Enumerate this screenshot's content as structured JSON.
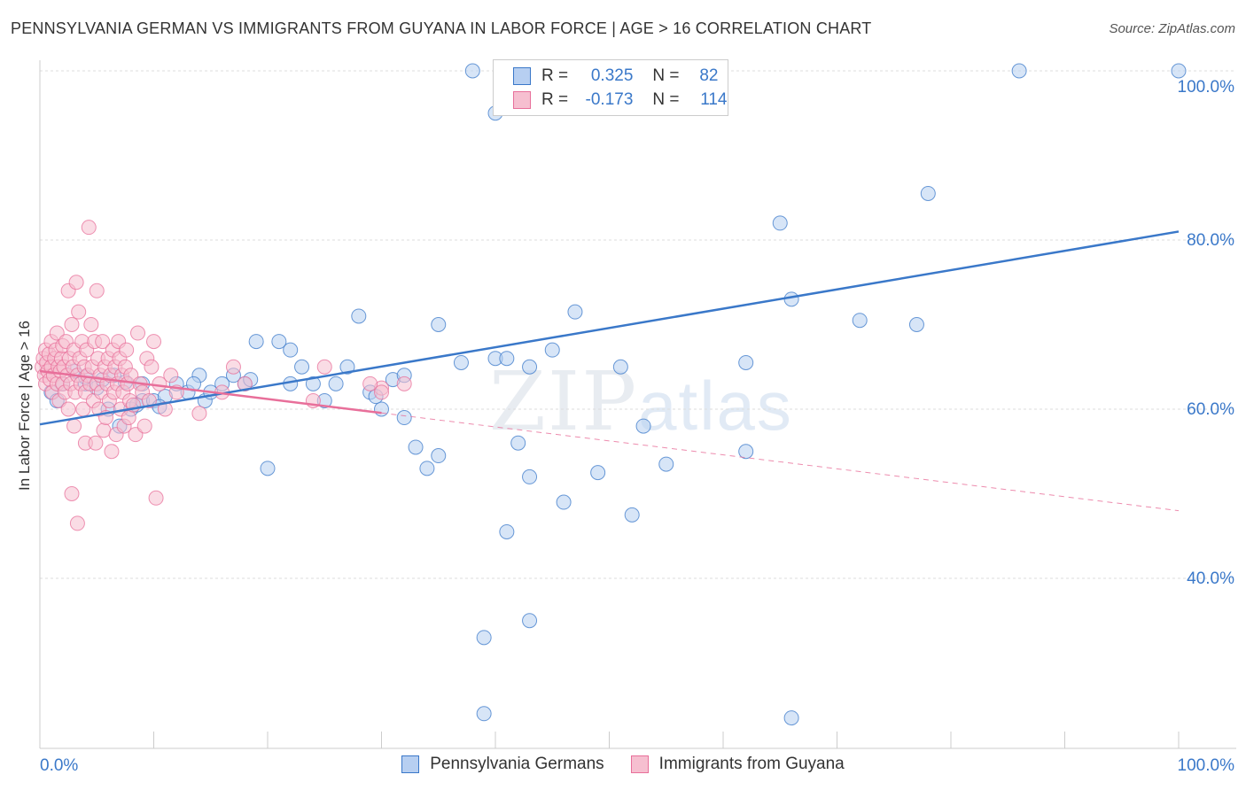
{
  "title": "PENNSYLVANIA GERMAN VS IMMIGRANTS FROM GUYANA IN LABOR FORCE | AGE > 16 CORRELATION CHART",
  "source": "Source: ZipAtlas.com",
  "watermark": {
    "zip": "ZIP",
    "atlas": "atlas"
  },
  "legend": {
    "r_label": "R =",
    "n_label": "N =",
    "series1": {
      "r": "0.325",
      "n": "82"
    },
    "series2": {
      "r": "-0.173",
      "n": "114"
    }
  },
  "colors": {
    "blue": "#3a78c9",
    "blue_fill": "#b7cff1",
    "pink": "#e86f9a",
    "pink_fill": "#f6bfd0"
  },
  "chart_data": {
    "type": "scatter",
    "xlabel": "",
    "ylabel": "In Labor Force | Age > 16",
    "xlim": [
      0,
      100
    ],
    "ylim": [
      20,
      103
    ],
    "x_tick_labels": [
      "0.0%",
      "100.0%"
    ],
    "y_ticks": [
      40,
      60,
      80,
      100
    ],
    "y_tick_labels": [
      "40.0%",
      "60.0%",
      "80.0%",
      "100.0%"
    ],
    "grid": true,
    "series": [
      {
        "name": "Pennsylvania Germans",
        "color": "#3a78c9",
        "trend": {
          "x": [
            0,
            100
          ],
          "y": [
            58.2,
            81.0
          ],
          "dashed_from": null
        },
        "points": [
          [
            1,
            62
          ],
          [
            1.5,
            61
          ],
          [
            2,
            63
          ],
          [
            3,
            64.5
          ],
          [
            4,
            63
          ],
          [
            5,
            62.5
          ],
          [
            5.5,
            63.5
          ],
          [
            6,
            60
          ],
          [
            6.5,
            64
          ],
          [
            7,
            58
          ],
          [
            8,
            60
          ],
          [
            8.5,
            60.5
          ],
          [
            9,
            61
          ],
          [
            9,
            63
          ],
          [
            10,
            61
          ],
          [
            11,
            61.5
          ],
          [
            12,
            63
          ],
          [
            13,
            62
          ],
          [
            14,
            64
          ],
          [
            13.5,
            63
          ],
          [
            14.5,
            61
          ],
          [
            15,
            62
          ],
          [
            16,
            63
          ],
          [
            17,
            64
          ],
          [
            18,
            63
          ],
          [
            19,
            68
          ],
          [
            20,
            53
          ],
          [
            21,
            68
          ],
          [
            22,
            67
          ],
          [
            22,
            63
          ],
          [
            23,
            65
          ],
          [
            24,
            63
          ],
          [
            25,
            61
          ],
          [
            26,
            63
          ],
          [
            27,
            65
          ],
          [
            28,
            71
          ],
          [
            29,
            62
          ],
          [
            30,
            60
          ],
          [
            31,
            63.5
          ],
          [
            32,
            59
          ],
          [
            32,
            64
          ],
          [
            33,
            55.5
          ],
          [
            34,
            53
          ],
          [
            35,
            54.5
          ],
          [
            35,
            70
          ],
          [
            37,
            65.5
          ],
          [
            38,
            100
          ],
          [
            39,
            33
          ],
          [
            39,
            24
          ],
          [
            40,
            66
          ],
          [
            40,
            95
          ],
          [
            41,
            45.5
          ],
          [
            41,
            66
          ],
          [
            42,
            56
          ],
          [
            43,
            35
          ],
          [
            43,
            52
          ],
          [
            43,
            65
          ],
          [
            45,
            67
          ],
          [
            46,
            49
          ],
          [
            47,
            71.5
          ],
          [
            49,
            52.5
          ],
          [
            51,
            65
          ],
          [
            52,
            47.5
          ],
          [
            53,
            58
          ],
          [
            54,
            100
          ],
          [
            55,
            53.5
          ],
          [
            56,
            96
          ],
          [
            62,
            55
          ],
          [
            62,
            65.5
          ],
          [
            65,
            82
          ],
          [
            66,
            73
          ],
          [
            72,
            70.5
          ],
          [
            77,
            70
          ],
          [
            66,
            23.5
          ],
          [
            78,
            85.5
          ],
          [
            86,
            100
          ],
          [
            100,
            100
          ],
          [
            4,
            63.8
          ],
          [
            7.5,
            63.2
          ],
          [
            10.5,
            60.3
          ],
          [
            18.5,
            63.5
          ],
          [
            29.5,
            61.5
          ]
        ]
      },
      {
        "name": "Immigrants from Guyana",
        "color": "#e86f9a",
        "trend": {
          "x": [
            0,
            100
          ],
          "y": [
            64.5,
            48.0
          ],
          "dashed_from": 30
        },
        "points": [
          [
            0.2,
            65
          ],
          [
            0.3,
            66
          ],
          [
            0.4,
            64
          ],
          [
            0.5,
            67
          ],
          [
            0.5,
            63
          ],
          [
            0.6,
            65.5
          ],
          [
            0.7,
            64.5
          ],
          [
            0.8,
            66.5
          ],
          [
            0.9,
            63.5
          ],
          [
            1,
            65
          ],
          [
            1,
            68
          ],
          [
            1.1,
            62
          ],
          [
            1.2,
            64
          ],
          [
            1.3,
            66
          ],
          [
            1.4,
            67
          ],
          [
            1.5,
            63
          ],
          [
            1.5,
            69
          ],
          [
            1.6,
            65
          ],
          [
            1.7,
            61
          ],
          [
            1.8,
            64.5
          ],
          [
            1.9,
            66
          ],
          [
            2,
            63
          ],
          [
            2,
            67.5
          ],
          [
            2.1,
            65
          ],
          [
            2.2,
            62
          ],
          [
            2.3,
            68
          ],
          [
            2.4,
            64
          ],
          [
            2.5,
            74
          ],
          [
            2.5,
            60
          ],
          [
            2.6,
            66
          ],
          [
            2.7,
            63
          ],
          [
            2.8,
            70
          ],
          [
            2.9,
            65
          ],
          [
            3,
            67
          ],
          [
            3,
            58
          ],
          [
            3.1,
            62
          ],
          [
            3.2,
            75
          ],
          [
            3.3,
            64
          ],
          [
            3.4,
            71.5
          ],
          [
            3.5,
            66
          ],
          [
            3.6,
            63
          ],
          [
            3.7,
            68
          ],
          [
            3.8,
            60
          ],
          [
            3.9,
            65
          ],
          [
            4,
            62
          ],
          [
            4,
            56
          ],
          [
            4.1,
            67
          ],
          [
            4.2,
            64
          ],
          [
            4.3,
            81.5
          ],
          [
            4.4,
            63
          ],
          [
            4.5,
            70
          ],
          [
            4.6,
            65
          ],
          [
            4.7,
            61
          ],
          [
            4.8,
            68
          ],
          [
            4.9,
            56
          ],
          [
            5,
            63
          ],
          [
            5,
            74
          ],
          [
            5.1,
            66
          ],
          [
            5.2,
            60
          ],
          [
            5.3,
            64
          ],
          [
            5.4,
            62
          ],
          [
            5.5,
            68
          ],
          [
            5.6,
            57.5
          ],
          [
            5.7,
            65
          ],
          [
            5.8,
            59
          ],
          [
            5.9,
            63
          ],
          [
            6,
            66
          ],
          [
            6.1,
            61
          ],
          [
            6.2,
            64
          ],
          [
            6.3,
            55
          ],
          [
            6.4,
            67
          ],
          [
            6.5,
            62
          ],
          [
            6.6,
            65
          ],
          [
            6.7,
            57
          ],
          [
            6.8,
            63
          ],
          [
            6.9,
            68
          ],
          [
            7,
            66
          ],
          [
            7.1,
            60
          ],
          [
            7.2,
            64
          ],
          [
            7.3,
            62
          ],
          [
            7.4,
            58
          ],
          [
            7.5,
            65
          ],
          [
            7.6,
            67
          ],
          [
            7.7,
            63
          ],
          [
            7.8,
            59
          ],
          [
            7.9,
            61
          ],
          [
            8,
            64
          ],
          [
            8.2,
            60.5
          ],
          [
            8.4,
            57
          ],
          [
            8.6,
            69
          ],
          [
            8.8,
            63
          ],
          [
            9,
            62
          ],
          [
            9.2,
            58
          ],
          [
            9.4,
            66
          ],
          [
            9.6,
            61
          ],
          [
            9.8,
            65
          ],
          [
            10,
            68
          ],
          [
            10.2,
            49.5
          ],
          [
            10.5,
            63
          ],
          [
            11,
            60
          ],
          [
            11.5,
            64
          ],
          [
            12,
            62
          ],
          [
            2.8,
            50
          ],
          [
            3.3,
            46.5
          ],
          [
            14,
            59.5
          ],
          [
            16,
            62
          ],
          [
            17,
            65
          ],
          [
            18,
            63
          ],
          [
            24,
            61
          ],
          [
            25,
            65
          ],
          [
            30,
            62.5
          ],
          [
            30,
            62
          ],
          [
            32,
            63
          ],
          [
            29,
            63
          ]
        ]
      }
    ]
  }
}
